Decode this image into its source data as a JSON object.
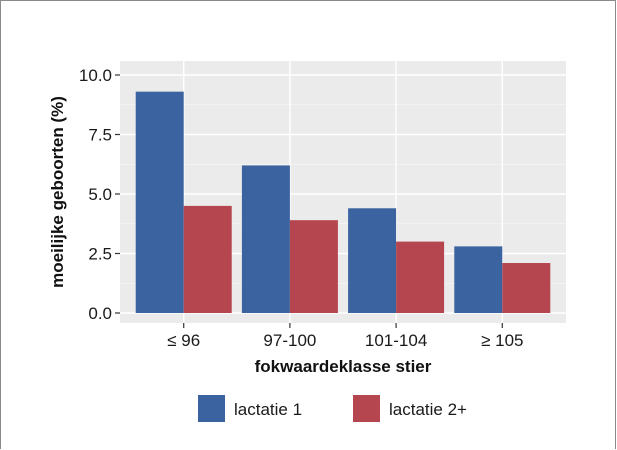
{
  "chart_data": {
    "type": "bar",
    "title": "",
    "xlabel": "fokwaardeklasse stier",
    "ylabel": "moeilijke geboorten (%)",
    "ylim": [
      0,
      10
    ],
    "yticks": [
      "0.0",
      "2.5",
      "5.0",
      "7.5",
      "10.0"
    ],
    "ytick_values": [
      0,
      2.5,
      5,
      7.5,
      10
    ],
    "categories": [
      "≤ 96",
      "97-100",
      "101-104",
      "≥ 105"
    ],
    "series": [
      {
        "name": "lactatie 1",
        "values": [
          9.3,
          6.2,
          4.4,
          2.8
        ],
        "color": "#3b63a0"
      },
      {
        "name": "lactatie 2+",
        "values": [
          4.5,
          3.9,
          3.0,
          2.1
        ],
        "color": "#b5464f"
      }
    ],
    "grid": true,
    "legend_position": "bottom",
    "panel_background": "#ebebeb"
  }
}
